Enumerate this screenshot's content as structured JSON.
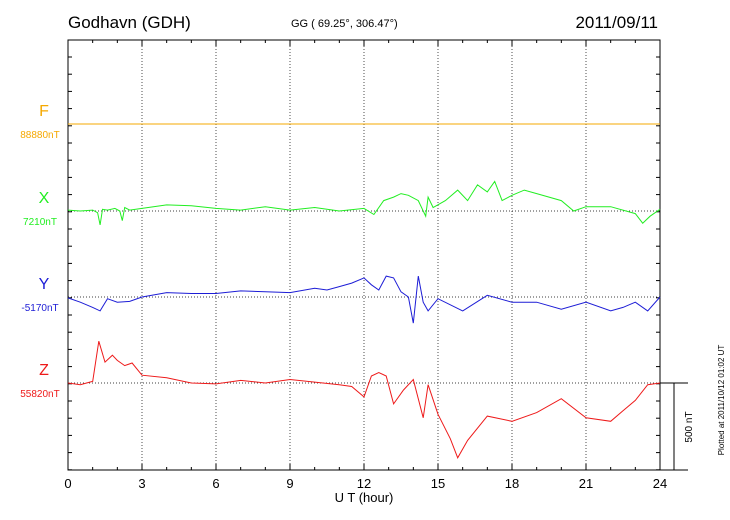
{
  "header": {
    "station": "Godhavn (GDH)",
    "coords": "GG ( 69.25°, 306.47°)",
    "date": "2011/09/11"
  },
  "side_note": "Plotted at 2011/10/12 01:02 UT",
  "chart_data": {
    "type": "line",
    "xlabel": "U T (hour)",
    "xlim": [
      0,
      24
    ],
    "xticks": [
      "0",
      "3",
      "6",
      "9",
      "12",
      "15",
      "18",
      "21",
      "24"
    ],
    "grid": "vertical dotted at every 3 h; dotted baseline per component",
    "scale_bar": {
      "label": "500 nT",
      "value_nT": 500
    },
    "series": [
      {
        "name": "F",
        "baseline_label": "88880nT",
        "color": "#f5a800",
        "x": [
          0,
          24
        ],
        "y": [
          0,
          0
        ]
      },
      {
        "name": "X",
        "baseline_label": "7210nT",
        "color": "#22ee22",
        "x": [
          0,
          0.5,
          1.0,
          1.2,
          1.3,
          1.4,
          1.6,
          1.9,
          2.1,
          2.2,
          2.3,
          2.5,
          3.0,
          4.0,
          5.0,
          6.0,
          7.0,
          8.0,
          9.0,
          10.0,
          11.0,
          12.0,
          12.4,
          12.8,
          13.2,
          13.5,
          13.8,
          14.2,
          14.5,
          14.6,
          14.8,
          15.3,
          15.8,
          16.2,
          16.6,
          17.0,
          17.3,
          17.6,
          18.0,
          18.5,
          19.0,
          20.0,
          20.5,
          21.0,
          22.0,
          23.0,
          23.3,
          23.6,
          24.0
        ],
        "y": [
          5,
          0,
          5,
          -10,
          -80,
          10,
          5,
          15,
          0,
          -55,
          20,
          5,
          15,
          35,
          30,
          15,
          5,
          25,
          5,
          20,
          0,
          15,
          -20,
          60,
          80,
          100,
          90,
          60,
          -30,
          80,
          20,
          60,
          120,
          60,
          150,
          110,
          170,
          60,
          90,
          120,
          100,
          60,
          0,
          25,
          25,
          -15,
          -70,
          -30,
          10
        ]
      },
      {
        "name": "Y",
        "baseline_label": "-5170nT",
        "color": "#1d1dd6",
        "x": [
          0,
          0.5,
          1.0,
          1.3,
          1.6,
          2.0,
          2.5,
          3.0,
          4.0,
          5.0,
          6.0,
          7.0,
          8.0,
          9.0,
          10.0,
          10.5,
          11.0,
          11.5,
          12.0,
          12.3,
          12.6,
          12.9,
          13.2,
          13.5,
          13.8,
          14.0,
          14.2,
          14.4,
          14.6,
          15.0,
          16.0,
          17.0,
          18.0,
          19.0,
          20.0,
          21.0,
          22.0,
          22.5,
          23.0,
          23.5,
          24.0
        ],
        "y": [
          -5,
          -30,
          -60,
          -80,
          -10,
          -30,
          -25,
          0,
          25,
          20,
          20,
          35,
          30,
          25,
          50,
          40,
          60,
          80,
          110,
          70,
          40,
          120,
          110,
          30,
          0,
          -150,
          120,
          -30,
          -80,
          -10,
          -80,
          10,
          -30,
          -30,
          -70,
          -30,
          -80,
          -60,
          -30,
          -80,
          0
        ]
      },
      {
        "name": "Z",
        "baseline_label": "55820nT",
        "color": "#ee1a1a",
        "x": [
          0,
          0.5,
          1.0,
          1.25,
          1.5,
          1.8,
          2.0,
          2.3,
          2.6,
          3.0,
          4.0,
          5.0,
          6.0,
          7.0,
          8.0,
          9.0,
          10.0,
          11.0,
          11.5,
          12.0,
          12.3,
          12.6,
          12.9,
          13.2,
          13.6,
          14.0,
          14.4,
          14.6,
          15.0,
          15.5,
          15.8,
          16.2,
          17.0,
          18.0,
          19.0,
          20.0,
          21.0,
          22.0,
          22.5,
          23.0,
          23.5,
          24.0
        ],
        "y": [
          0,
          -10,
          10,
          240,
          120,
          160,
          130,
          100,
          115,
          45,
          30,
          0,
          -5,
          15,
          0,
          20,
          5,
          -10,
          -20,
          -80,
          40,
          60,
          40,
          -120,
          -40,
          20,
          -200,
          -10,
          -180,
          -320,
          -430,
          -330,
          -190,
          -220,
          -170,
          -90,
          -200,
          -220,
          -160,
          -100,
          -10,
          0
        ]
      }
    ]
  }
}
